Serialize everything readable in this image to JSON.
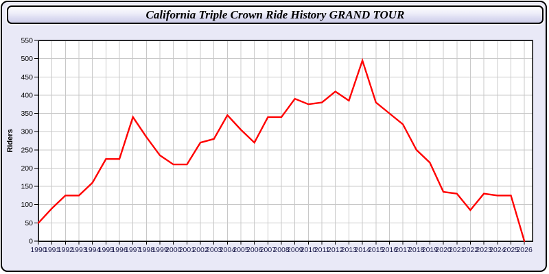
{
  "window": {
    "title": "California Triple Crown Ride History GRAND TOUR"
  },
  "chart_data": {
    "type": "line",
    "title": "California Triple Crown Ride History GRAND TOUR",
    "xlabel": "",
    "ylabel": "Riders",
    "x": [
      1990,
      1991,
      1992,
      1993,
      1994,
      1995,
      1996,
      1997,
      1998,
      1999,
      2000,
      2001,
      2002,
      2003,
      2004,
      2005,
      2006,
      2007,
      2008,
      2009,
      2010,
      2011,
      2012,
      2013,
      2014,
      2015,
      2016,
      2017,
      2018,
      2019,
      2020,
      2021,
      2022,
      2023,
      2024,
      2025,
      2026
    ],
    "series": [
      {
        "name": "Riders",
        "color": "#ff0000",
        "values": [
          50,
          90,
          125,
          125,
          160,
          225,
          225,
          340,
          285,
          235,
          210,
          210,
          270,
          280,
          345,
          305,
          270,
          340,
          340,
          390,
          375,
          380,
          410,
          385,
          495,
          380,
          350,
          320,
          250,
          215,
          135,
          130,
          85,
          130,
          125,
          125,
          0
        ]
      }
    ],
    "ylim": [
      0,
      550
    ],
    "ytick_step": 50,
    "grid": true,
    "legend": "none",
    "plot_bg": "#ffffff",
    "grid_color": "#c8c8c8",
    "axis_color": "#000000",
    "x_tick_label_color": "#1a1a4a",
    "y_tick_label_color": "#000000"
  },
  "colors": {
    "panel_bg": "#e9e9f7",
    "outer_border": "#000000"
  }
}
